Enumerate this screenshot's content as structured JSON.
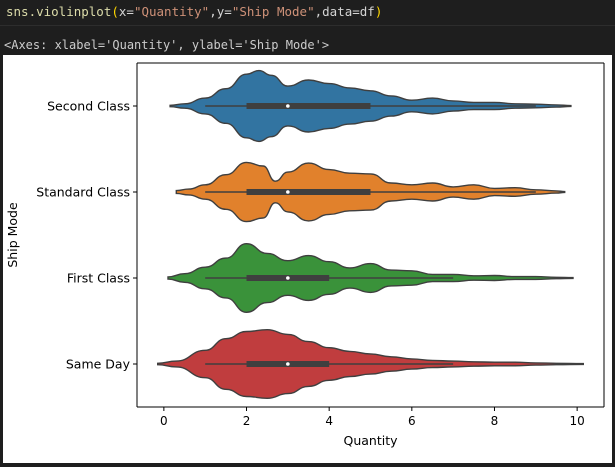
{
  "code_cell": {
    "fn": "sns.violinplot",
    "open_paren": "(",
    "arg1_key": "x=",
    "arg1_val": "\"Quantity\"",
    "comma1": ",",
    "arg2_key": "y=",
    "arg2_val": "\"Ship Mode\"",
    "comma2": ",",
    "arg3": "data=df",
    "close_paren": ")"
  },
  "output_text": "<Axes: xlabel='Quantity', ylabel='Ship Mode'>",
  "chart_data": {
    "type": "violin",
    "orientation": "horizontal",
    "xlabel": "Quantity",
    "ylabel": "Ship Mode",
    "xlim": [
      -0.65,
      10.65
    ],
    "xticks": [
      0,
      2,
      4,
      6,
      8,
      10
    ],
    "grid": false,
    "categories": [
      "Second Class",
      "Standard Class",
      "First Class",
      "Same Day"
    ],
    "series": [
      {
        "category": "Second Class",
        "color": "#3274a1",
        "box": {
          "q1": 2,
          "median": 3,
          "q3": 5,
          "whisker_low": 1,
          "whisker_high": 9
        },
        "range": [
          0.15,
          9.85
        ],
        "density": [
          [
            0.15,
            0.02
          ],
          [
            0.5,
            0.06
          ],
          [
            1.0,
            0.22
          ],
          [
            1.5,
            0.48
          ],
          [
            2.0,
            0.88
          ],
          [
            2.3,
            0.98
          ],
          [
            2.6,
            0.85
          ],
          [
            3.0,
            0.55
          ],
          [
            3.5,
            0.72
          ],
          [
            4.0,
            0.62
          ],
          [
            4.5,
            0.5
          ],
          [
            5.0,
            0.42
          ],
          [
            5.5,
            0.28
          ],
          [
            6.0,
            0.16
          ],
          [
            6.5,
            0.22
          ],
          [
            7.0,
            0.14
          ],
          [
            7.5,
            0.1
          ],
          [
            8.0,
            0.1
          ],
          [
            8.5,
            0.06
          ],
          [
            9.0,
            0.05
          ],
          [
            9.5,
            0.03
          ],
          [
            9.85,
            0.01
          ]
        ]
      },
      {
        "category": "Standard Class",
        "color": "#e1812c",
        "box": {
          "q1": 2,
          "median": 3,
          "q3": 5,
          "whisker_low": 1,
          "whisker_high": 9
        },
        "range": [
          0.3,
          9.7
        ],
        "density": [
          [
            0.3,
            0.04
          ],
          [
            0.6,
            0.08
          ],
          [
            1.0,
            0.2
          ],
          [
            1.5,
            0.48
          ],
          [
            2.0,
            0.82
          ],
          [
            2.4,
            0.72
          ],
          [
            2.7,
            0.3
          ],
          [
            3.0,
            0.55
          ],
          [
            3.5,
            0.8
          ],
          [
            4.0,
            0.62
          ],
          [
            4.5,
            0.52
          ],
          [
            5.0,
            0.5
          ],
          [
            5.5,
            0.25
          ],
          [
            6.0,
            0.2
          ],
          [
            6.5,
            0.25
          ],
          [
            7.0,
            0.14
          ],
          [
            7.5,
            0.2
          ],
          [
            8.0,
            0.1
          ],
          [
            8.5,
            0.12
          ],
          [
            9.0,
            0.06
          ],
          [
            9.5,
            0.03
          ],
          [
            9.7,
            0.01
          ]
        ]
      },
      {
        "category": "First Class",
        "color": "#3a923a",
        "box": {
          "q1": 2,
          "median": 3,
          "q3": 4,
          "whisker_low": 1,
          "whisker_high": 7
        },
        "range": [
          0.1,
          9.9
        ],
        "density": [
          [
            0.1,
            0.03
          ],
          [
            0.5,
            0.12
          ],
          [
            1.0,
            0.3
          ],
          [
            1.5,
            0.55
          ],
          [
            2.0,
            0.95
          ],
          [
            2.5,
            0.68
          ],
          [
            3.0,
            0.48
          ],
          [
            3.5,
            0.62
          ],
          [
            4.0,
            0.45
          ],
          [
            4.5,
            0.28
          ],
          [
            5.0,
            0.4
          ],
          [
            5.5,
            0.22
          ],
          [
            6.0,
            0.2
          ],
          [
            6.5,
            0.1
          ],
          [
            7.0,
            0.1
          ],
          [
            7.5,
            0.06
          ],
          [
            8.0,
            0.07
          ],
          [
            8.5,
            0.04
          ],
          [
            9.0,
            0.04
          ],
          [
            9.5,
            0.02
          ],
          [
            9.9,
            0.01
          ]
        ]
      },
      {
        "category": "Same Day",
        "color": "#c03d3e",
        "box": {
          "q1": 2,
          "median": 3,
          "q3": 4,
          "whisker_low": 1,
          "whisker_high": 7
        },
        "range": [
          -0.15,
          10.15
        ],
        "density": [
          [
            -0.15,
            0.02
          ],
          [
            0.3,
            0.08
          ],
          [
            1.0,
            0.38
          ],
          [
            1.5,
            0.7
          ],
          [
            2.0,
            0.9
          ],
          [
            2.5,
            0.95
          ],
          [
            3.0,
            0.82
          ],
          [
            3.5,
            0.62
          ],
          [
            4.0,
            0.45
          ],
          [
            4.5,
            0.35
          ],
          [
            5.0,
            0.28
          ],
          [
            5.5,
            0.2
          ],
          [
            6.0,
            0.14
          ],
          [
            6.5,
            0.1
          ],
          [
            7.0,
            0.08
          ],
          [
            7.5,
            0.06
          ],
          [
            8.0,
            0.05
          ],
          [
            8.5,
            0.05
          ],
          [
            9.0,
            0.03
          ],
          [
            9.5,
            0.02
          ],
          [
            10.15,
            0.01
          ]
        ]
      }
    ]
  }
}
